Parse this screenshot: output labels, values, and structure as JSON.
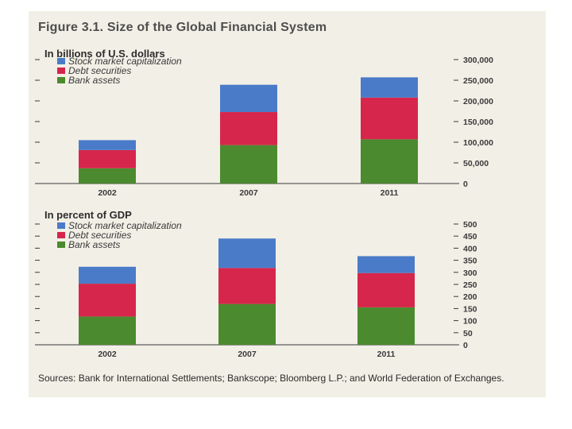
{
  "figure": {
    "title": "Figure 3.1. Size of the Global Financial System",
    "sources": "Sources: Bank for International Settlements; Bankscope; Bloomberg L.P.; and World Federation of Exchanges."
  },
  "colors": {
    "stock": "#4a7bc8",
    "debt": "#d6264b",
    "bank": "#4b8a2e"
  },
  "chart_data": [
    {
      "type": "bar",
      "stacked": true,
      "title": "In billions of U.S. dollars",
      "categories": [
        "2002",
        "2007",
        "2011"
      ],
      "series": [
        {
          "name": "Bank assets",
          "color_key": "bank",
          "values": [
            37000,
            93000,
            107000
          ]
        },
        {
          "name": "Debt securities",
          "color_key": "debt",
          "values": [
            44000,
            80000,
            101000
          ]
        },
        {
          "name": "Stock market capitalization",
          "color_key": "stock",
          "values": [
            24000,
            66000,
            49000
          ]
        }
      ],
      "legend": [
        "Stock market capitalization",
        "Debt securities",
        "Bank assets"
      ],
      "ylim": [
        0,
        300000
      ],
      "yticks": [
        0,
        50000,
        100000,
        150000,
        200000,
        250000,
        300000
      ],
      "ytick_labels": [
        "0",
        "50,000",
        "100,000",
        "150,000",
        "200,000",
        "250,000",
        "300,000"
      ]
    },
    {
      "type": "bar",
      "stacked": true,
      "title": "In percent of GDP",
      "categories": [
        "2002",
        "2007",
        "2011"
      ],
      "series": [
        {
          "name": "Bank assets",
          "color_key": "bank",
          "values": [
            117,
            169,
            155
          ]
        },
        {
          "name": "Debt securities",
          "color_key": "debt",
          "values": [
            136,
            149,
            142
          ]
        },
        {
          "name": "Stock market capitalization",
          "color_key": "stock",
          "values": [
            70,
            122,
            70
          ]
        }
      ],
      "legend": [
        "Stock market capitalization",
        "Debt securities",
        "Bank assets"
      ],
      "ylim": [
        0,
        500
      ],
      "yticks": [
        0,
        50,
        100,
        150,
        200,
        250,
        300,
        350,
        400,
        450,
        500
      ],
      "ytick_labels": [
        "0",
        "50",
        "100",
        "150",
        "200",
        "250",
        "300",
        "350",
        "400",
        "450",
        "500"
      ]
    }
  ]
}
